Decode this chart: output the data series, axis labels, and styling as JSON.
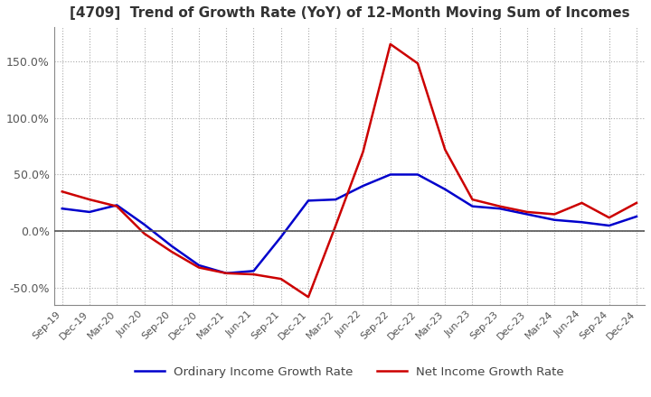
{
  "title": "[4709]  Trend of Growth Rate (YoY) of 12-Month Moving Sum of Incomes",
  "ylim": [
    -65,
    180
  ],
  "yticks": [
    -50,
    0,
    50,
    100,
    150
  ],
  "ytick_labels": [
    "-50.0%",
    "0.0%",
    "50.0%",
    "100.0%",
    "150.0%"
  ],
  "background_color": "#ffffff",
  "grid_color": "#aaaaaa",
  "ordinary_color": "#0000cc",
  "net_color": "#cc0000",
  "legend_ordinary": "Ordinary Income Growth Rate",
  "legend_net": "Net Income Growth Rate",
  "x_labels": [
    "Sep-19",
    "Dec-19",
    "Mar-20",
    "Jun-20",
    "Sep-20",
    "Dec-20",
    "Mar-21",
    "Jun-21",
    "Sep-21",
    "Dec-21",
    "Mar-22",
    "Jun-22",
    "Sep-22",
    "Dec-22",
    "Mar-23",
    "Jun-23",
    "Sep-23",
    "Dec-23",
    "Mar-24",
    "Jun-24",
    "Sep-24",
    "Dec-24"
  ],
  "ordinary_income": [
    20,
    17,
    23,
    6,
    -13,
    -30,
    -37,
    -35,
    -5,
    27,
    28,
    40,
    50,
    50,
    37,
    22,
    20,
    15,
    10,
    8,
    5,
    13
  ],
  "net_income": [
    35,
    28,
    22,
    -2,
    -18,
    -32,
    -37,
    -38,
    -42,
    -58,
    5,
    70,
    165,
    148,
    72,
    28,
    22,
    17,
    15,
    25,
    12,
    25
  ]
}
